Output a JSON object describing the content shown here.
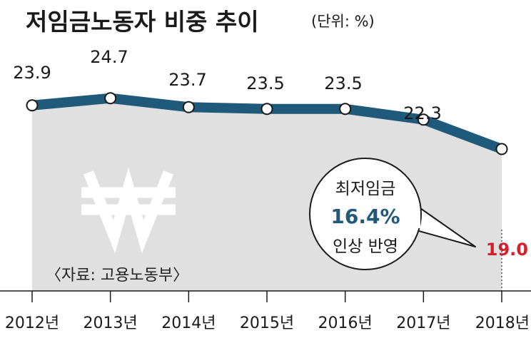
{
  "title": "저임금노동자 비중 추이",
  "unit": "(단위: %)",
  "source": "〈자료: 고용노동부〉",
  "colors": {
    "line": "#1f5a7a",
    "area": "#e0e0e0",
    "highlight": "#d61f2a",
    "text": "#1a1a1a"
  },
  "icon": "won-sign-icon",
  "chart_data": {
    "type": "line",
    "title": "저임금노동자 비중 추이",
    "unit": "%",
    "categories": [
      "2012년",
      "2013년",
      "2014년",
      "2015년",
      "2016년",
      "2017년",
      "2018년"
    ],
    "series": [
      {
        "values": [
          23.9,
          24.7,
          23.7,
          23.5,
          23.5,
          22.3,
          19.0
        ]
      }
    ],
    "value_labels": [
      "23.9",
      "24.7",
      "23.7",
      "23.5",
      "23.5",
      "22.3",
      "19.0"
    ],
    "annotation": {
      "line1": "최저임금",
      "line2": "16.4%",
      "line3": "인상 반영",
      "target_index": 6
    },
    "grid": false,
    "legend": "none"
  }
}
